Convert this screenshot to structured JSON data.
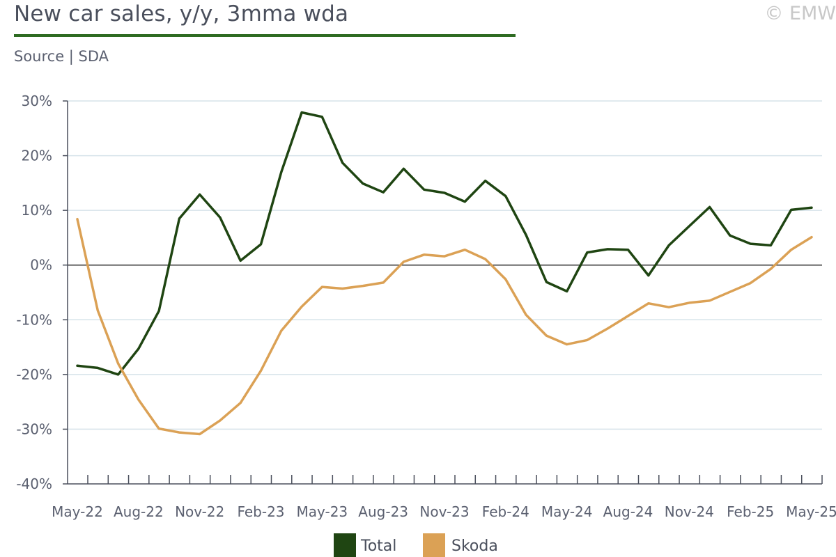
{
  "header": {
    "title": "New car sales, y/y, 3mma wda",
    "copyright": "© EMW",
    "source": "Source | SDA"
  },
  "colors": {
    "total": "#1f4512",
    "skoda": "#dba155",
    "title_rule": "#2e6b22",
    "grid": "#d6e3ea",
    "axis": "#4a4f5c",
    "zero_line": "#333333"
  },
  "chart_data": {
    "type": "line",
    "y_unit": "%",
    "ylim": [
      -40,
      30
    ],
    "y_ticks": [
      30,
      20,
      10,
      0,
      -10,
      -20,
      -30,
      -40
    ],
    "y_tick_labels": [
      "30%",
      "20%",
      "10%",
      "0%",
      "-10%",
      "-20%",
      "-30%",
      "-40%"
    ],
    "grid": true,
    "legend_position": "bottom",
    "x": [
      "May-22",
      "Jun-22",
      "Jul-22",
      "Aug-22",
      "Sep-22",
      "Oct-22",
      "Nov-22",
      "Dec-22",
      "Jan-23",
      "Feb-23",
      "Mar-23",
      "Apr-23",
      "May-23",
      "Jun-23",
      "Jul-23",
      "Aug-23",
      "Sep-23",
      "Oct-23",
      "Nov-23",
      "Dec-23",
      "Jan-24",
      "Feb-24",
      "Mar-24",
      "Apr-24",
      "May-24",
      "Jun-24",
      "Jul-24",
      "Aug-24",
      "Sep-24",
      "Oct-24",
      "Nov-24",
      "Dec-24",
      "Jan-25",
      "Feb-25",
      "Mar-25",
      "Apr-25",
      "May-25"
    ],
    "x_tick_labels": [
      "May-22",
      "Aug-22",
      "Nov-22",
      "Feb-23",
      "May-23",
      "Aug-23",
      "Nov-23",
      "Feb-24",
      "May-24",
      "Aug-24",
      "Nov-24",
      "Feb-25",
      "May-25"
    ],
    "x_label_every": 3,
    "series": [
      {
        "name": "Total",
        "color": "#1f4512",
        "values": [
          -18.4,
          -18.8,
          -20.0,
          -15.3,
          -8.4,
          8.5,
          12.9,
          8.7,
          0.8,
          3.8,
          17.0,
          27.9,
          27.1,
          18.7,
          14.9,
          13.3,
          17.6,
          13.8,
          13.2,
          11.6,
          15.4,
          12.6,
          5.5,
          -3.1,
          -4.8,
          2.3,
          2.9,
          2.8,
          -1.9,
          3.6,
          7.1,
          10.6,
          5.4,
          3.9,
          3.6,
          10.1,
          10.5
        ]
      },
      {
        "name": "Skoda",
        "color": "#dba155",
        "values": [
          8.4,
          -8.3,
          -18.0,
          -24.6,
          -29.9,
          -30.6,
          -30.9,
          -28.4,
          -25.2,
          -19.3,
          -12.0,
          -7.6,
          -4.0,
          -4.3,
          -3.8,
          -3.2,
          0.6,
          1.9,
          1.6,
          2.8,
          1.1,
          -2.6,
          -9.1,
          -12.9,
          -14.5,
          -13.7,
          -11.6,
          -9.3,
          -7.0,
          -7.7,
          -6.9,
          -6.5,
          -4.9,
          -3.3,
          -0.7,
          2.8,
          5.1
        ]
      }
    ]
  }
}
